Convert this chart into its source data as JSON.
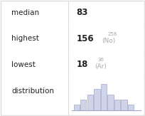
{
  "median": 83,
  "highest_val": 156,
  "highest_label": "258",
  "highest_element": "No",
  "lowest_val": 18,
  "lowest_label": "36",
  "lowest_element": "Ar",
  "hist_bars": [
    1,
    2,
    3,
    4,
    5,
    3,
    2,
    2,
    1
  ],
  "bar_color": "#d0d4e8",
  "bar_edge_color": "#a0a8c8",
  "text_color_main": "#222222",
  "text_color_secondary": "#aaaaaa",
  "bg_color": "#ffffff",
  "row_line_color": "#dddddd"
}
